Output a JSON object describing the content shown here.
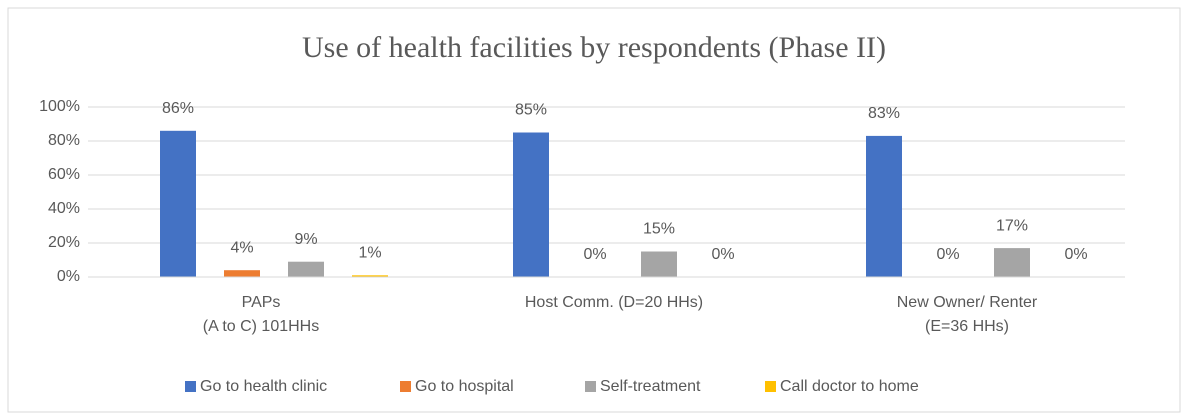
{
  "chart_data": {
    "type": "bar",
    "title": "Use of health facilities by respondents (Phase II)",
    "categories": [
      "PAPs\n(A to C) 101HHs",
      "Host Comm. (D=20 HHs)",
      "New Owner/ Renter\n(E=36 HHs)"
    ],
    "series": [
      {
        "name": "Go to health clinic",
        "color": "#4472c4",
        "values": [
          86,
          85,
          83
        ],
        "value_labels": [
          "86%",
          "85%",
          "83%"
        ]
      },
      {
        "name": "Go to hospital",
        "color": "#ed7d31",
        "values": [
          4,
          0,
          0
        ],
        "value_labels": [
          "4%",
          "0%",
          "0%"
        ]
      },
      {
        "name": "Self-treatment",
        "color": "#a5a5a5",
        "values": [
          9,
          15,
          17
        ],
        "value_labels": [
          "9%",
          "15%",
          "17%"
        ]
      },
      {
        "name": "Call doctor to home",
        "color": "#ffc000",
        "values": [
          1,
          0,
          0
        ],
        "value_labels": [
          "1%",
          "0%",
          "0%"
        ]
      }
    ],
    "ylim": [
      0,
      100
    ],
    "yticks": [
      {
        "value": 0,
        "label": "0%"
      },
      {
        "value": 20,
        "label": "20%"
      },
      {
        "value": 40,
        "label": "40%"
      },
      {
        "value": 60,
        "label": "60%"
      },
      {
        "value": 80,
        "label": "80%"
      },
      {
        "value": 100,
        "label": "100%"
      }
    ],
    "grid": true,
    "legend": "bottom"
  }
}
